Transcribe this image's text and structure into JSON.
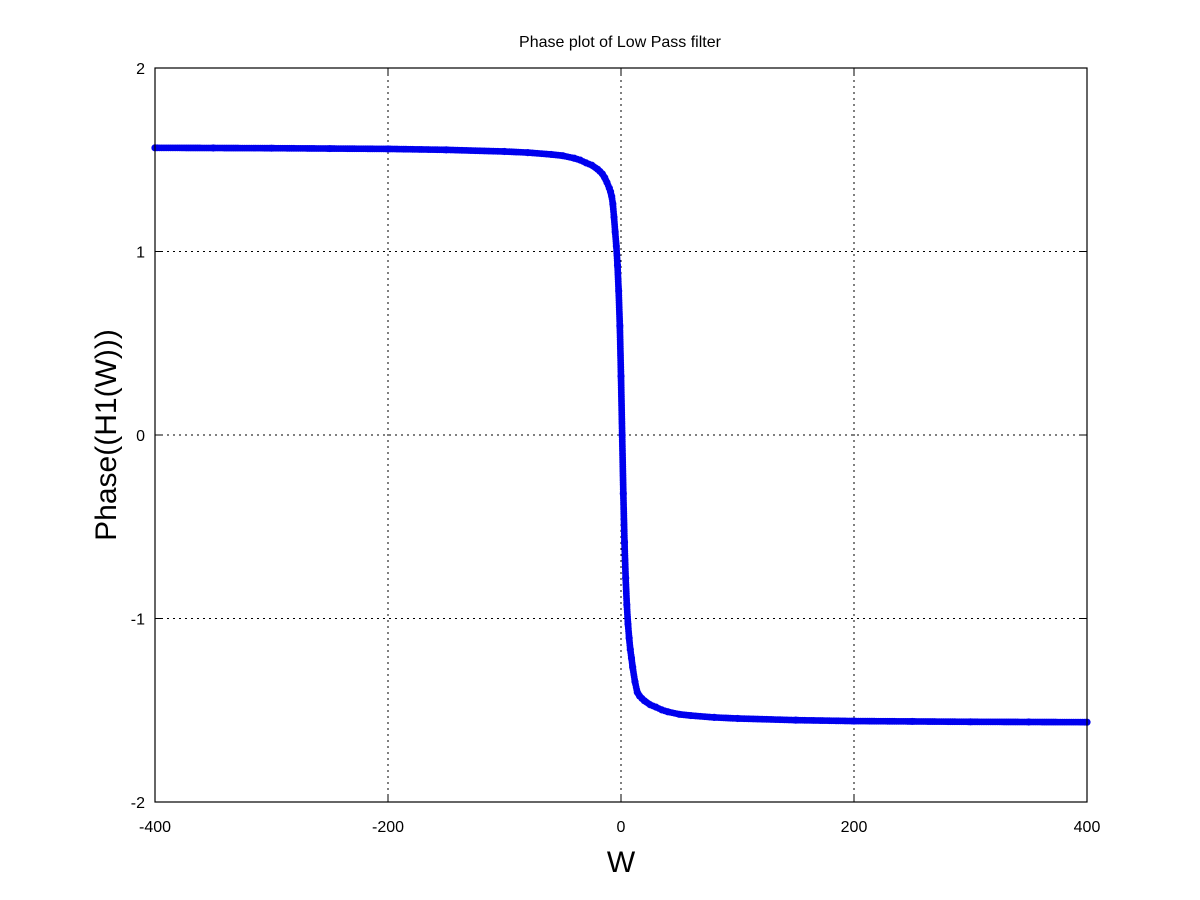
{
  "chart_data": {
    "type": "line",
    "title": "Phase plot of Low Pass filter",
    "xlabel": "W",
    "ylabel": "Phase((H1(W)))",
    "xlim": [
      -400,
      400
    ],
    "ylim": [
      -2,
      2
    ],
    "xticks": [
      "-400",
      "-200",
      "0",
      "200",
      "400"
    ],
    "yticks": [
      "2",
      "1",
      "0",
      "-1",
      "-2"
    ],
    "grid": true,
    "marker": "dot",
    "line_color": "#0000ee",
    "series": [
      {
        "x": [
          -400,
          -350,
          -300,
          -250,
          -200,
          -150,
          -100,
          -80,
          -60,
          -50,
          -40,
          -35,
          -30,
          -25,
          -20,
          -18,
          -16,
          -14,
          -12,
          -10,
          -9,
          -8,
          -7,
          -6,
          -5,
          -4,
          -3,
          -2,
          -1,
          0,
          1,
          2,
          3,
          4,
          5,
          6,
          7,
          8,
          9,
          10,
          12,
          14,
          16,
          18,
          20,
          25,
          30,
          35,
          40,
          50,
          60,
          80,
          100,
          150,
          200,
          250,
          300,
          350,
          400
        ],
        "y": [
          1.565,
          1.564,
          1.563,
          1.561,
          1.559,
          1.554,
          1.545,
          1.539,
          1.529,
          1.522,
          1.508,
          1.498,
          1.483,
          1.47,
          1.448,
          1.436,
          1.423,
          1.402,
          1.376,
          1.345,
          1.326,
          1.301,
          1.259,
          1.188,
          1.107,
          1.03,
          0.925,
          0.785,
          0.595,
          0.32,
          0.0,
          -0.32,
          -0.585,
          -0.78,
          -0.925,
          -1.03,
          -1.107,
          -1.17,
          -1.215,
          -1.265,
          -1.345,
          -1.402,
          -1.423,
          -1.436,
          -1.448,
          -1.47,
          -1.483,
          -1.498,
          -1.508,
          -1.522,
          -1.529,
          -1.539,
          -1.545,
          -1.554,
          -1.559,
          -1.561,
          -1.563,
          -1.564,
          -1.565
        ]
      }
    ]
  }
}
